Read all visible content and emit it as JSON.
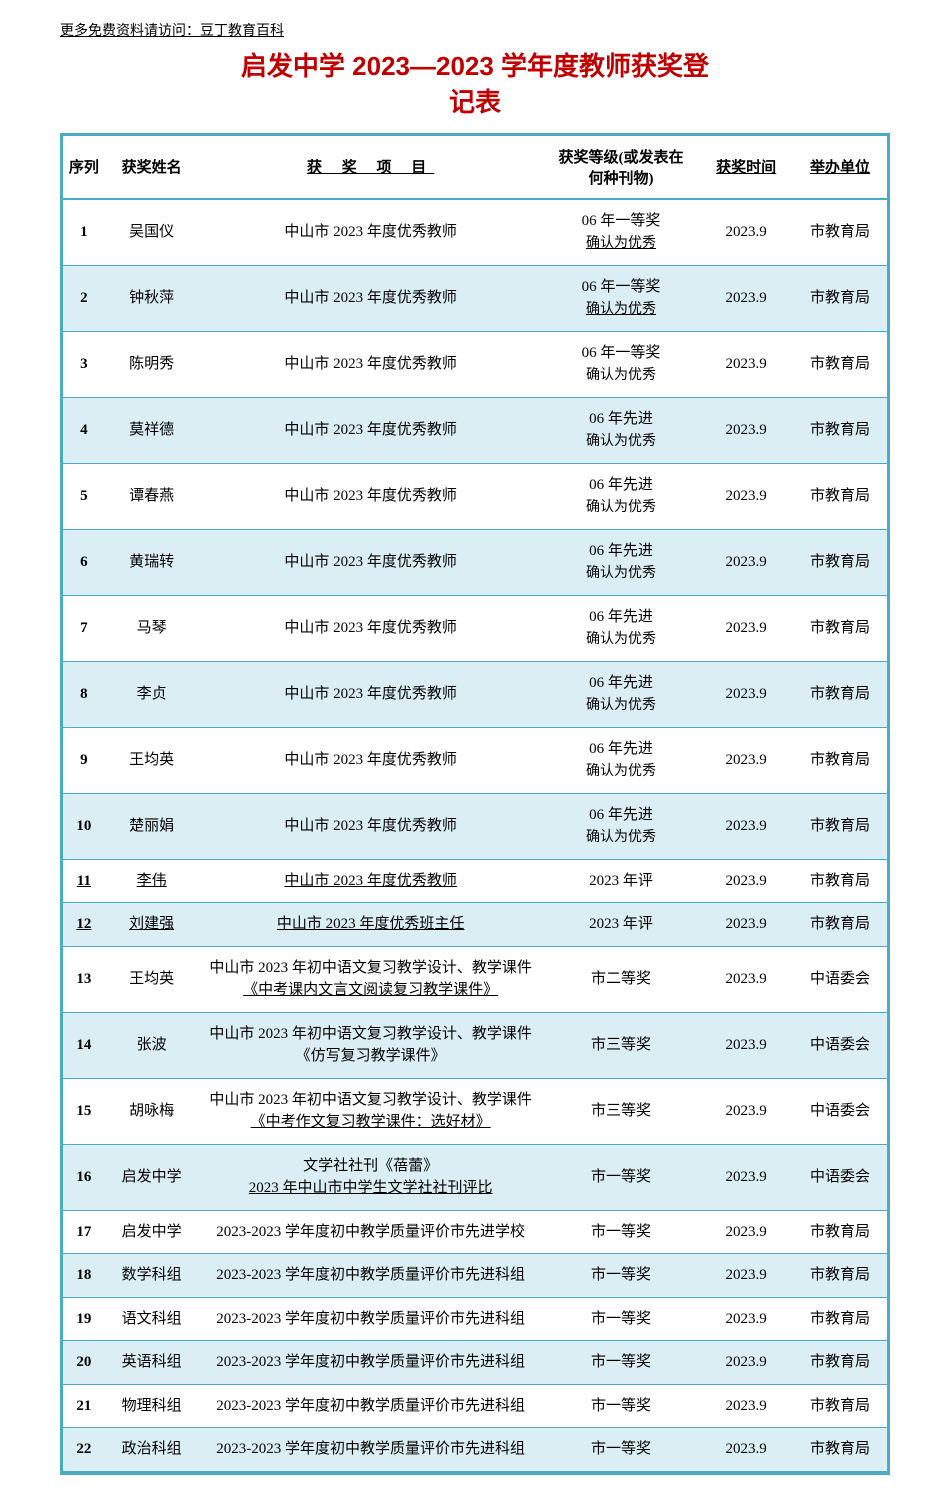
{
  "header_note": "更多免费资料请访问：豆丁教育百科",
  "title_line1": "启发中学 2023—2023 学年度教师获奖登",
  "title_line2": "记表",
  "columns": {
    "index": "序列",
    "name": "获奖姓名",
    "project": "获 奖 项 目",
    "level_line1": "获奖等级(或发表在",
    "level_line2": "何种刊物)",
    "time": "获奖时间",
    "org": "举办单位"
  },
  "rows": [
    {
      "idx": "1",
      "name": "吴国仪",
      "project": "中山市 2023 年度优秀教师",
      "level": "06 年一等奖",
      "level_sub": "确认为优秀",
      "level_sub_underline": true,
      "time": "2023.9",
      "org": "市教育局"
    },
    {
      "idx": "2",
      "name": "钟秋萍",
      "project": "中山市 2023 年度优秀教师",
      "level": "06 年一等奖",
      "level_sub": "确认为优秀",
      "level_sub_underline": true,
      "time": "2023.9",
      "org": "市教育局"
    },
    {
      "idx": "3",
      "name": "陈明秀",
      "project": "中山市 2023 年度优秀教师",
      "level": "06 年一等奖",
      "level_sub": "确认为优秀",
      "time": "2023.9",
      "org": "市教育局"
    },
    {
      "idx": "4",
      "name": "莫祥德",
      "project": "中山市 2023 年度优秀教师",
      "level": "06 年先进",
      "level_sub": "确认为优秀",
      "time": "2023.9",
      "org": "市教育局"
    },
    {
      "idx": "5",
      "name": "谭春燕",
      "project": "中山市 2023 年度优秀教师",
      "level": "06 年先进",
      "level_sub": "确认为优秀",
      "time": "2023.9",
      "org": "市教育局"
    },
    {
      "idx": "6",
      "name": "黄瑞转",
      "project": "中山市 2023 年度优秀教师",
      "level": "06 年先进",
      "level_sub": "确认为优秀",
      "time": "2023.9",
      "org": "市教育局"
    },
    {
      "idx": "7",
      "name": "马琴",
      "project": "中山市 2023 年度优秀教师",
      "level": "06 年先进",
      "level_sub": "确认为优秀",
      "time": "2023.9",
      "org": "市教育局"
    },
    {
      "idx": "8",
      "name": "李贞",
      "project": "中山市 2023 年度优秀教师",
      "level": "06 年先进",
      "level_sub": "确认为优秀",
      "time": "2023.9",
      "org": "市教育局"
    },
    {
      "idx": "9",
      "name": "王均英",
      "project": "中山市 2023 年度优秀教师",
      "level": "06 年先进",
      "level_sub": "确认为优秀",
      "time": "2023.9",
      "org": "市教育局"
    },
    {
      "idx": "10",
      "name": "楚丽娟",
      "project": "中山市 2023 年度优秀教师",
      "level": "06 年先进",
      "level_sub": "确认为优秀",
      "time": "2023.9",
      "org": "市教育局"
    },
    {
      "idx": "11",
      "name": "李伟",
      "project": "中山市 2023 年度优秀教师",
      "project_underline": true,
      "name_underline": true,
      "idx_underline": true,
      "level": "2023 年评",
      "time": "2023.9",
      "org": "市教育局"
    },
    {
      "idx": "12",
      "name": "刘建强",
      "project": "中山市 2023 年度优秀班主任",
      "project_underline": true,
      "name_underline": true,
      "idx_underline": true,
      "level": "2023 年评",
      "time": "2023.9",
      "org": "市教育局"
    },
    {
      "idx": "13",
      "name": "王均英",
      "project": "中山市 2023 年初中语文复习教学设计、教学课件",
      "project2": "《中考课内文言文阅读复习教学课件》",
      "project2_underline": true,
      "level": "市二等奖",
      "time": "2023.9",
      "org": "中语委会"
    },
    {
      "idx": "14",
      "name": "张波",
      "project": "中山市 2023 年初中语文复习教学设计、教学课件",
      "project2": "《仿写复习教学课件》",
      "level": "市三等奖",
      "time": "2023.9",
      "org": "中语委会"
    },
    {
      "idx": "15",
      "name": "胡咏梅",
      "project": "中山市 2023 年初中语文复习教学设计、教学课件",
      "project2": "《中考作文复习教学课件：选好材》",
      "project2_underline": true,
      "level": "市三等奖",
      "time": "2023.9",
      "org": "中语委会"
    },
    {
      "idx": "16",
      "name": "启发中学",
      "project": "文学社社刊《蓓蕾》",
      "project2": "2023 年中山市中学生文学社社刊评比",
      "project2_underline": true,
      "level": "市一等奖",
      "time": "2023.9",
      "org": "中语委会"
    },
    {
      "idx": "17",
      "name": "启发中学",
      "project": "2023-2023 学年度初中教学质量评价市先进学校",
      "level": "市一等奖",
      "time": "2023.9",
      "org": "市教育局"
    },
    {
      "idx": "18",
      "name": "数学科组",
      "project": "2023-2023 学年度初中教学质量评价市先进科组",
      "level": "市一等奖",
      "time": "2023.9",
      "org": "市教育局"
    },
    {
      "idx": "19",
      "name": "语文科组",
      "project": "2023-2023 学年度初中教学质量评价市先进科组",
      "level": "市一等奖",
      "time": "2023.9",
      "org": "市教育局"
    },
    {
      "idx": "20",
      "name": "英语科组",
      "project": "2023-2023 学年度初中教学质量评价市先进科组",
      "level": "市一等奖",
      "time": "2023.9",
      "org": "市教育局"
    },
    {
      "idx": "21",
      "name": "物理科组",
      "project": "2023-2023 学年度初中教学质量评价市先进科组",
      "level": "市一等奖",
      "time": "2023.9",
      "org": "市教育局"
    },
    {
      "idx": "22",
      "name": "政治科组",
      "project": "2023-2023 学年度初中教学质量评价市先进科组",
      "level": "市一等奖",
      "time": "2023.9",
      "org": "市教育局"
    }
  ],
  "colors": {
    "title": "#c00000",
    "border": "#4bacc6",
    "row_even_bg": "#daeef3",
    "row_odd_bg": "#ffffff"
  }
}
